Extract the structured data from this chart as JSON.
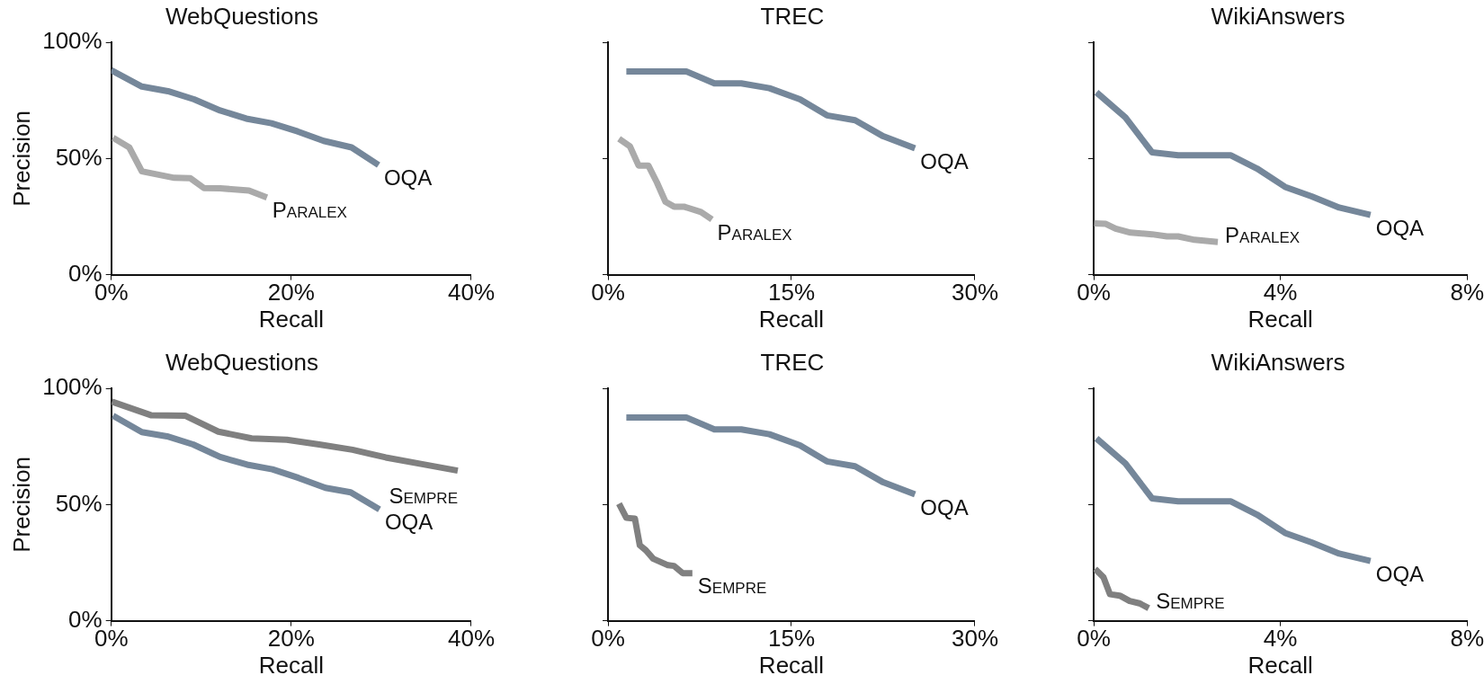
{
  "chart_data": [
    {
      "type": "line",
      "title": "WebQuestions",
      "xlabel": "Recall",
      "ylabel": "Precision",
      "xlim": [
        0,
        40
      ],
      "xticks": [
        {
          "value": 0,
          "label": "0%"
        },
        {
          "value": 20,
          "label": "20%"
        },
        {
          "value": 40,
          "label": "40%"
        }
      ],
      "ylim": [
        0,
        100
      ],
      "yticks": [
        {
          "value": 0,
          "label": "0%"
        },
        {
          "value": 50,
          "label": "50%"
        },
        {
          "value": 100,
          "label": "100%"
        }
      ],
      "marker": "none",
      "line_style": "solid",
      "series": [
        {
          "name": "OQA",
          "color": "#75879a",
          "x": [
            0,
            3.4,
            6.3,
            9.2,
            12.1,
            15,
            17.8,
            20.7,
            23.6,
            26.7,
            29.7
          ],
          "values": [
            88,
            81,
            79,
            75.5,
            70.7,
            67.2,
            65.2,
            61.7,
            57.6,
            54.8,
            47.2
          ]
        },
        {
          "name": "Paralex",
          "color": "#aaaaaa",
          "x": [
            0.2,
            2,
            3.4,
            7,
            8.8,
            10.3,
            12.1,
            15.3,
            17.3
          ],
          "values": [
            59,
            54.8,
            44.5,
            41.7,
            41.5,
            37.3,
            37.2,
            36.2,
            33.2
          ]
        }
      ]
    },
    {
      "type": "line",
      "title": "TREC",
      "xlabel": "Recall",
      "xlim": [
        0,
        30
      ],
      "xticks": [
        {
          "value": 0,
          "label": "0%"
        },
        {
          "value": 15,
          "label": "15%"
        },
        {
          "value": 30,
          "label": "30%"
        }
      ],
      "ylim": [
        0,
        100
      ],
      "yticks": [
        {
          "value": 0,
          "label": null
        },
        {
          "value": 50,
          "label": null
        },
        {
          "value": 100,
          "label": null
        }
      ],
      "tick_labels": "x",
      "marker": "none",
      "line_style": "solid",
      "series": [
        {
          "name": "OQA",
          "color": "#75879a",
          "x": [
            1.5,
            6.4,
            8.7,
            10.9,
            13.2,
            15.7,
            17.9,
            20.2,
            22.5,
            25.1
          ],
          "values": [
            87.5,
            87.5,
            82.4,
            82.4,
            80.3,
            75.5,
            68.6,
            66.5,
            59.6,
            54.4
          ]
        },
        {
          "name": "Paralex",
          "color": "#aaaaaa",
          "x": [
            0.9,
            1.8,
            2.5,
            3.3,
            4,
            4.7,
            5.4,
            6.2,
            7.6,
            8.5
          ],
          "values": [
            58.5,
            55.2,
            47,
            47,
            39.7,
            31.4,
            29.3,
            29.3,
            27,
            23.8
          ]
        }
      ]
    },
    {
      "type": "line",
      "title": "WikiAnswers",
      "xlabel": "Recall",
      "xlim": [
        0,
        8
      ],
      "xticks": [
        {
          "value": 0,
          "label": "0%"
        },
        {
          "value": 4,
          "label": "4%"
        },
        {
          "value": 8,
          "label": "8%"
        }
      ],
      "ylim": [
        0,
        100
      ],
      "yticks": [
        {
          "value": 0,
          "label": null
        },
        {
          "value": 50,
          "label": null
        },
        {
          "value": 100,
          "label": null
        }
      ],
      "tick_labels": "x",
      "marker": "none",
      "line_style": "solid",
      "series": [
        {
          "name": "OQA",
          "color": "#75879a",
          "x": [
            0.06,
            0.68,
            1.25,
            1.81,
            2.94,
            3.5,
            4.1,
            4.67,
            5.26,
            5.93
          ],
          "values": [
            78.5,
            67.7,
            52.7,
            51.4,
            51.4,
            45.7,
            37.8,
            33.7,
            28.9,
            25.7
          ]
        },
        {
          "name": "Paralex",
          "color": "#aaaaaa",
          "x": [
            0.01,
            0.26,
            0.47,
            0.79,
            1.25,
            1.57,
            1.81,
            2.16,
            2.66
          ],
          "values": [
            22.1,
            21.9,
            19.8,
            18.1,
            17.4,
            16.5,
            16.5,
            15,
            14.1
          ]
        }
      ]
    },
    {
      "type": "line",
      "title": "WebQuestions",
      "xlabel": "Recall",
      "ylabel": "Precision",
      "xlim": [
        0,
        40
      ],
      "xticks": [
        {
          "value": 0,
          "label": "0%"
        },
        {
          "value": 20,
          "label": "20%"
        },
        {
          "value": 40,
          "label": "40%"
        }
      ],
      "ylim": [
        0,
        100
      ],
      "yticks": [
        {
          "value": 0,
          "label": "0%"
        },
        {
          "value": 50,
          "label": "50%"
        },
        {
          "value": 100,
          "label": "100%"
        }
      ],
      "marker": "none",
      "line_style": "solid",
      "series": [
        {
          "name": "Sempre",
          "color": "#808080",
          "x": [
            0.07,
            4.4,
            8.2,
            11.9,
            15.6,
            19.5,
            23.1,
            26.8,
            30.5,
            34.4,
            38.5
          ],
          "values": [
            94.3,
            88.5,
            88.3,
            81.4,
            78.5,
            77.9,
            75.9,
            73.6,
            70.3,
            67.5,
            64.6
          ]
        },
        {
          "name": "OQA",
          "color": "#75879a",
          "x": [
            0.2,
            3.4,
            6.2,
            9.1,
            12.1,
            15.1,
            17.9,
            20.8,
            23.8,
            26.6,
            29.8
          ],
          "values": [
            88.3,
            81.2,
            79.4,
            75.9,
            70.5,
            67.2,
            65.2,
            61.5,
            57.2,
            55.3,
            47.9
          ]
        }
      ]
    },
    {
      "type": "line",
      "title": "TREC",
      "xlabel": "Recall",
      "xlim": [
        0,
        30
      ],
      "xticks": [
        {
          "value": 0,
          "label": "0%"
        },
        {
          "value": 15,
          "label": "15%"
        },
        {
          "value": 30,
          "label": "30%"
        }
      ],
      "ylim": [
        0,
        100
      ],
      "yticks": [
        {
          "value": 0,
          "label": null
        },
        {
          "value": 50,
          "label": null
        },
        {
          "value": 100,
          "label": null
        }
      ],
      "tick_labels": "x",
      "marker": "none",
      "line_style": "solid",
      "series": [
        {
          "name": "OQA",
          "color": "#75879a",
          "x": [
            1.5,
            6.4,
            8.7,
            10.9,
            13.2,
            15.7,
            17.9,
            20.2,
            22.5,
            25.1
          ],
          "values": [
            87.5,
            87.5,
            82.4,
            82.4,
            80.3,
            75.5,
            68.6,
            66.5,
            59.6,
            54.4
          ]
        },
        {
          "name": "Sempre",
          "color": "#808080",
          "x": [
            0.9,
            1.5,
            2.2,
            2.6,
            3.1,
            3.7,
            4.9,
            5.4,
            6.1,
            6.9
          ],
          "values": [
            50.4,
            44.3,
            44,
            32.5,
            30.3,
            26.7,
            23.9,
            23.6,
            20.5,
            20.5
          ]
        }
      ]
    },
    {
      "type": "line",
      "title": "WikiAnswers",
      "xlabel": "Recall",
      "xlim": [
        0,
        8
      ],
      "xticks": [
        {
          "value": 0,
          "label": "0%"
        },
        {
          "value": 4,
          "label": "4%"
        },
        {
          "value": 8,
          "label": "8%"
        }
      ],
      "ylim": [
        0,
        100
      ],
      "yticks": [
        {
          "value": 0,
          "label": null
        },
        {
          "value": 50,
          "label": null
        },
        {
          "value": 100,
          "label": null
        }
      ],
      "tick_labels": "x",
      "marker": "none",
      "line_style": "solid",
      "series": [
        {
          "name": "OQA",
          "color": "#75879a",
          "x": [
            0.06,
            0.68,
            1.25,
            1.81,
            2.94,
            3.5,
            4.1,
            4.67,
            5.26,
            5.93
          ],
          "values": [
            78.5,
            67.7,
            52.7,
            51.4,
            51.4,
            45.7,
            37.8,
            33.7,
            28.9,
            25.7
          ]
        },
        {
          "name": "Sempre",
          "color": "#808080",
          "x": [
            0.03,
            0.21,
            0.35,
            0.56,
            0.77,
            0.98,
            1.18
          ],
          "values": [
            22.3,
            18.7,
            11.4,
            10.8,
            8.5,
            7.5,
            5.4
          ]
        }
      ]
    }
  ]
}
